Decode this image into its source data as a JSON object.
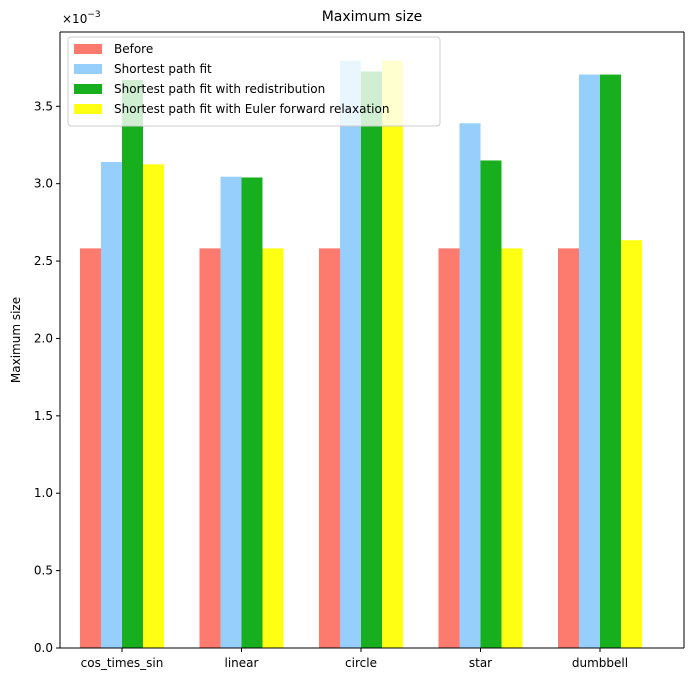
{
  "chart_data": {
    "type": "bar",
    "title": "Maximum size",
    "xlabel": "",
    "ylabel": "Maximum size",
    "y_multiplier": "×10",
    "y_exponent": "−3",
    "ylim": [
      0,
      0.00398
    ],
    "yticks": [
      0,
      0.0005,
      0.001,
      0.0015,
      0.002,
      0.0025,
      0.003,
      0.0035
    ],
    "ytick_labels": [
      "0.0",
      "0.5",
      "1.0",
      "1.5",
      "2.0",
      "2.5",
      "3.0",
      "3.5"
    ],
    "categories": [
      "cos_times_sin",
      "linear",
      "circle",
      "star",
      "dumbbell"
    ],
    "legend_position": "top-left",
    "grid": false,
    "series": [
      {
        "name": "Before",
        "color": "#fd7b6e",
        "values": [
          0.002582,
          0.002582,
          0.002582,
          0.002582,
          0.002582
        ]
      },
      {
        "name": "Shortest path fit",
        "color": "#96cffb",
        "values": [
          0.00314,
          0.003045,
          0.003795,
          0.00339,
          0.003705
        ]
      },
      {
        "name": "Shortest path fit with redistribution",
        "color": "#18af1f",
        "values": [
          0.00367,
          0.00304,
          0.003725,
          0.00315,
          0.003705
        ]
      },
      {
        "name": "Shortest path fit with Euler forward relaxation",
        "color": "#ffff14",
        "values": [
          0.003125,
          0.002582,
          0.003795,
          0.002582,
          0.002635
        ]
      }
    ]
  }
}
